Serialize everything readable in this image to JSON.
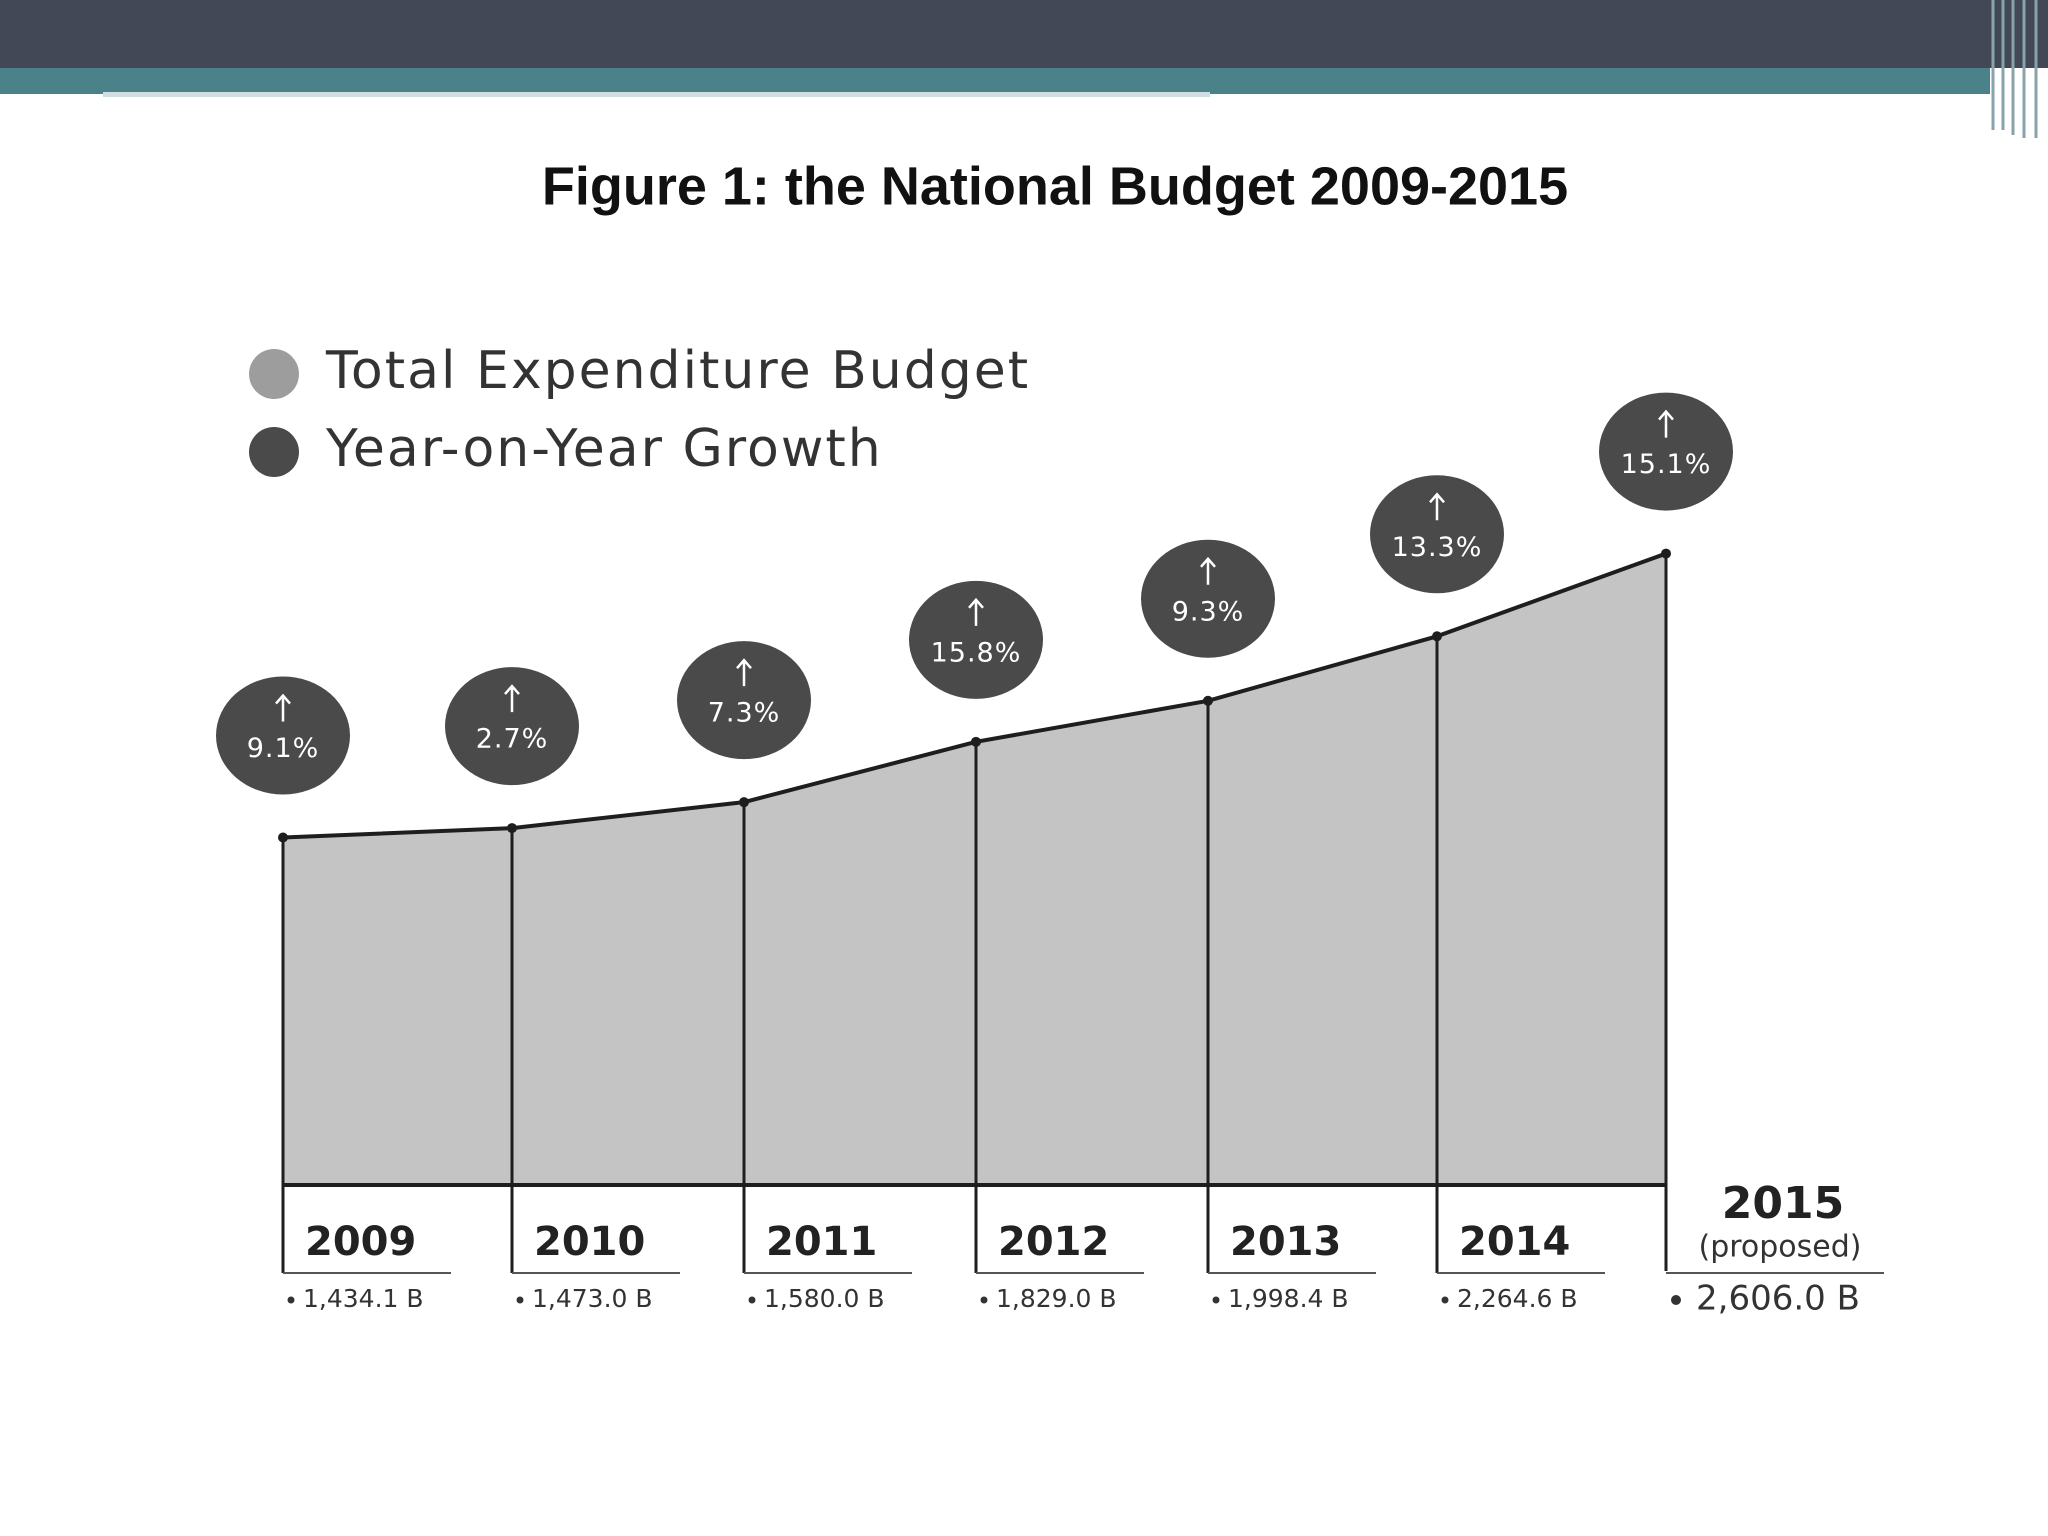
{
  "chart_data": {
    "type": "area",
    "title": "Figure 1: the National Budget 2009-2015",
    "categories": [
      "2009",
      "2010",
      "2011",
      "2012",
      "2013",
      "2014",
      "2015"
    ],
    "annotation": "(proposed)",
    "series": [
      {
        "name": "Total Expenditure Budget",
        "color": "#9d9d9d",
        "values": [
          1434.1,
          1473.0,
          1580.0,
          1829.0,
          1998.4,
          2264.6,
          2606.0
        ],
        "value_labels": [
          "1,434.1 B",
          "1,473.0 B",
          "1,580.0 B",
          "1,829.0 B",
          "1,998.4 B",
          "2,264.6 B",
          "2,606.0 B"
        ]
      },
      {
        "name": "Year-on-Year Growth",
        "color": "#4a4a4a",
        "values": [
          9.1,
          2.7,
          7.3,
          15.8,
          9.3,
          13.3,
          15.1
        ],
        "value_labels": [
          "9.1%",
          "2.7%",
          "7.3%",
          "15.8%",
          "9.3%",
          "13.3%",
          "15.1%"
        ]
      }
    ]
  }
}
